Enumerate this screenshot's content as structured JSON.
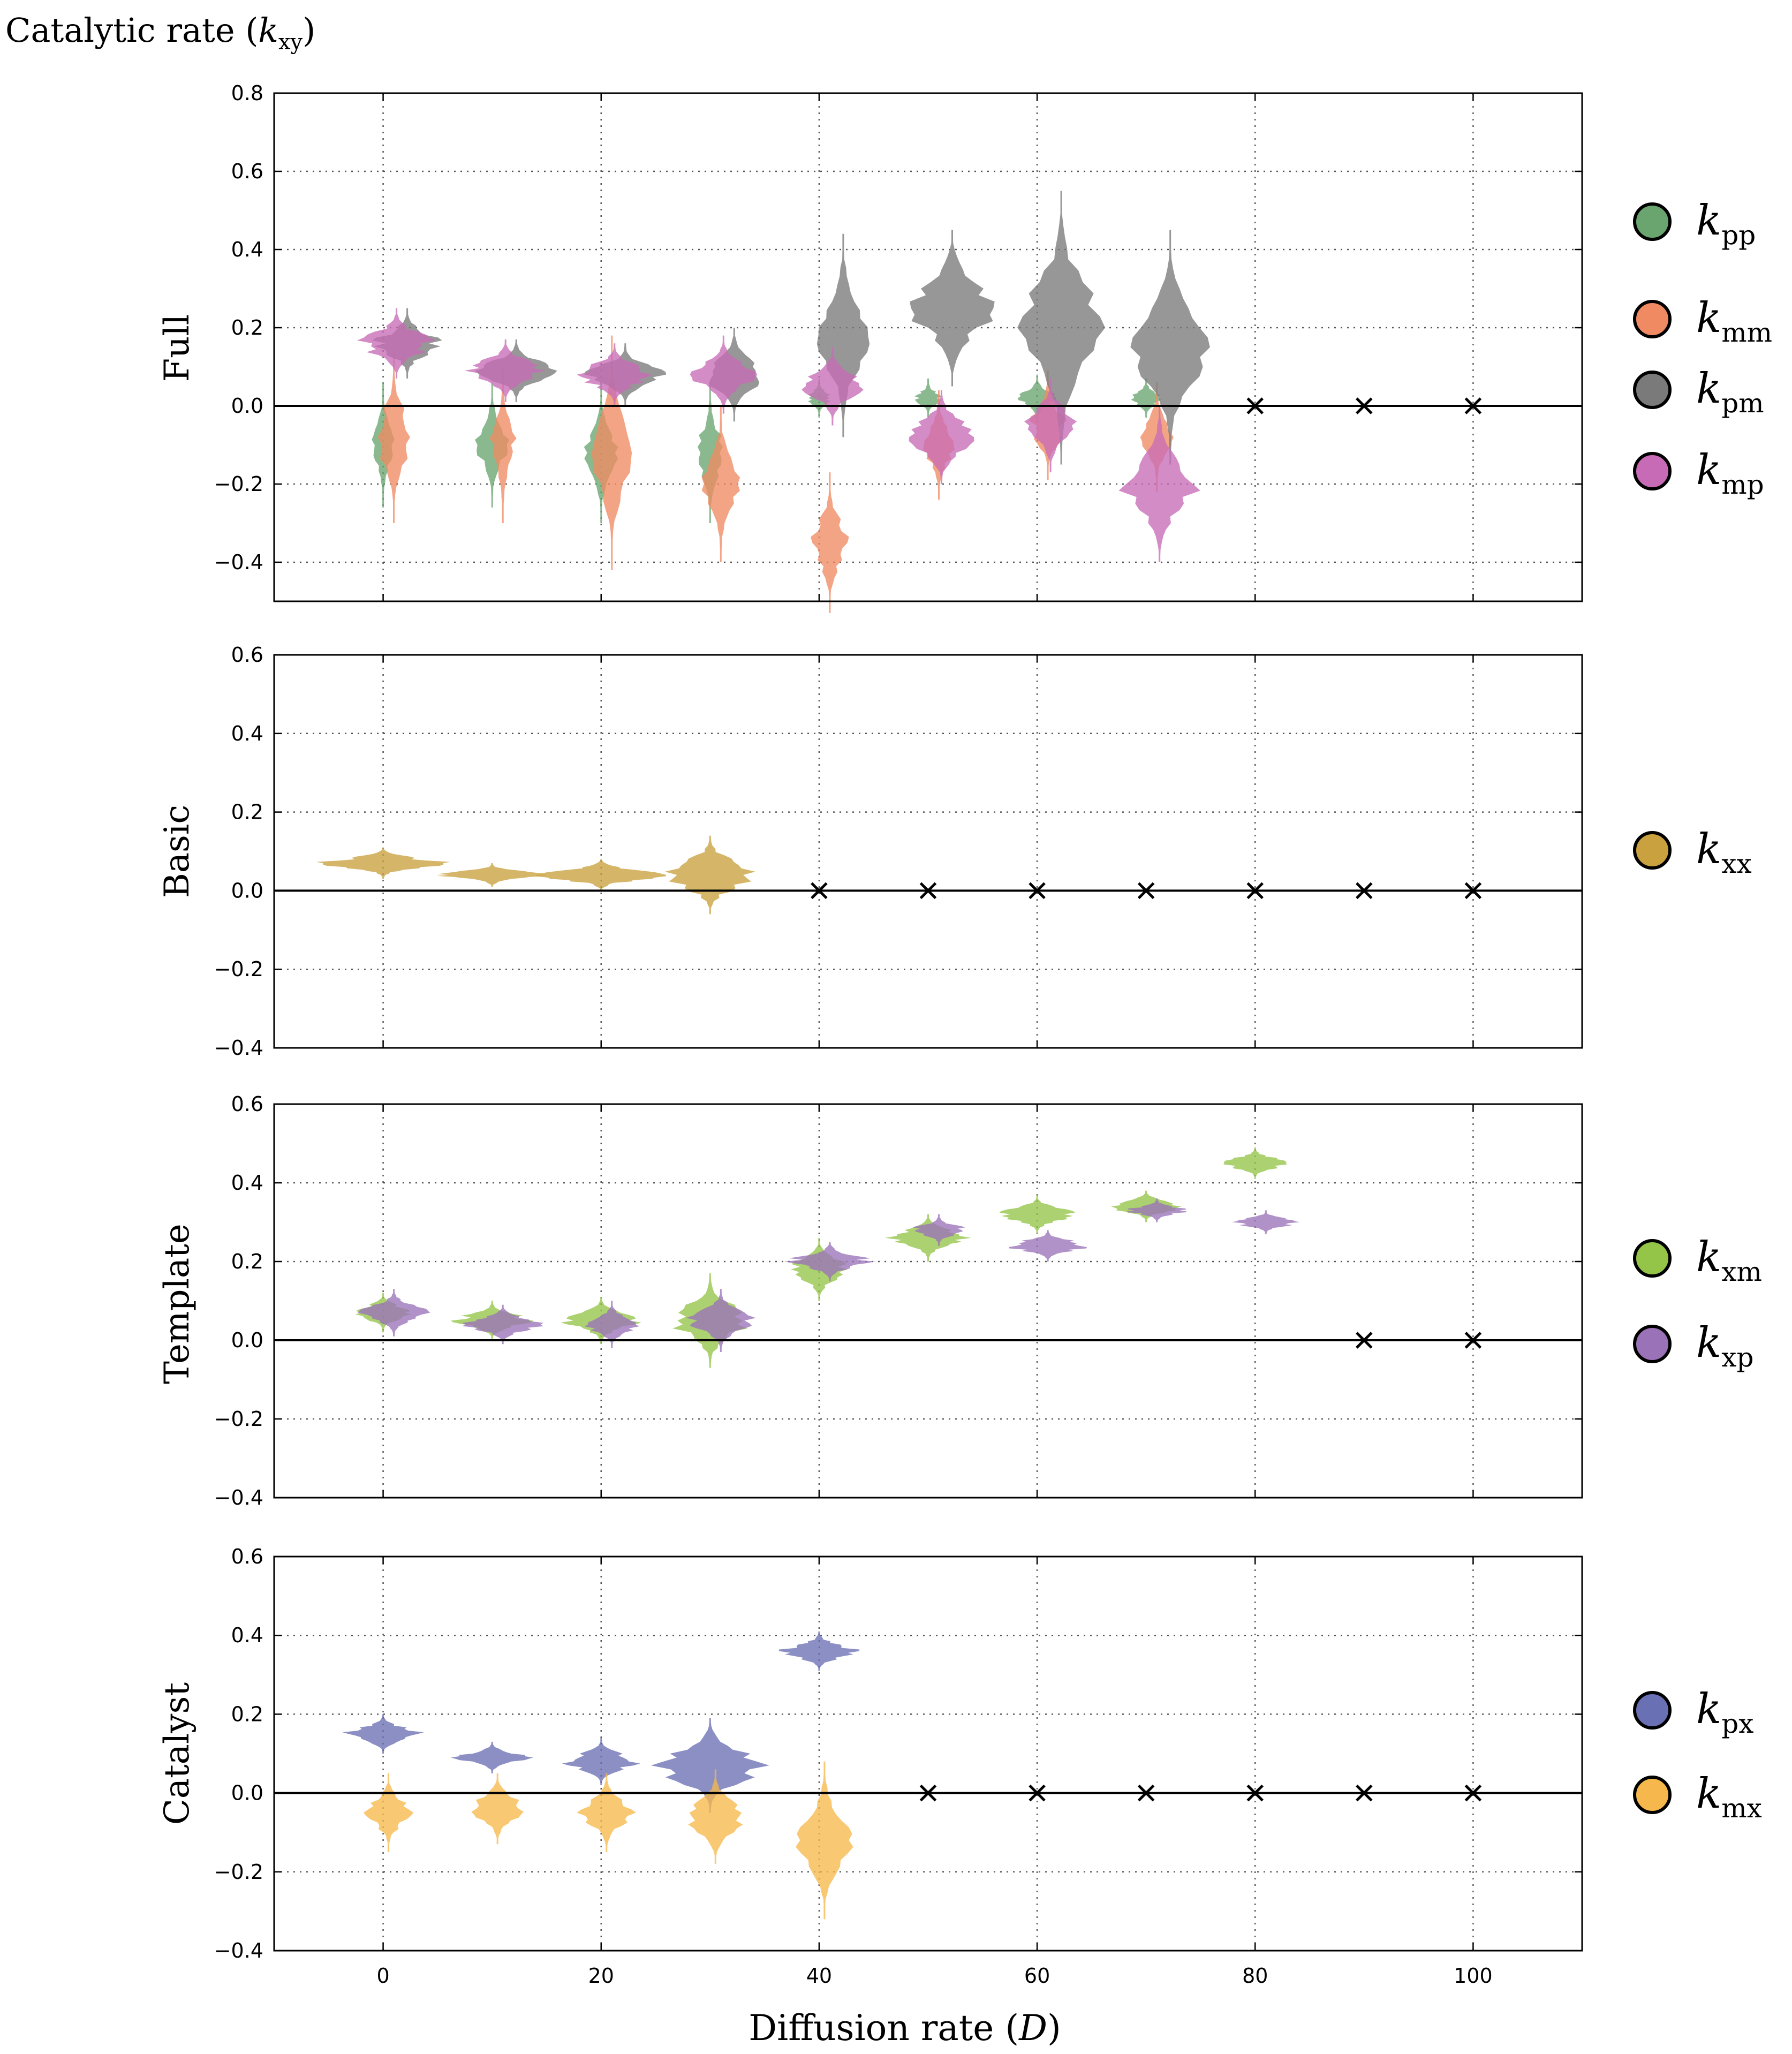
{
  "figure": {
    "ylabel_prefix": "Catalytic rate (",
    "ylabel_k": "k",
    "ylabel_sub": "xy",
    "ylabel_suffix": ")",
    "xlabel_prefix": "Diffusion rate (",
    "xlabel_D": "D",
    "xlabel_suffix": ")"
  },
  "colors": {
    "kpp": "#6aa56f",
    "kmm": "#f08a63",
    "kpm": "#7a7a7a",
    "kmp": "#c86bb6",
    "kxx": "#c9a13f",
    "kxm": "#94c448",
    "kxp": "#9a72b8",
    "kpx": "#6a70b4",
    "kmx": "#f6b84c"
  },
  "chart_data": [
    {
      "type": "violin",
      "panel": "Full",
      "xlim": [
        -10,
        110
      ],
      "ylim": [
        -0.5,
        0.8
      ],
      "xticks": [
        0,
        20,
        40,
        60,
        80,
        100
      ],
      "yticks": [
        -0.4,
        -0.2,
        0.0,
        0.2,
        0.4,
        0.6,
        0.8
      ],
      "ytick_labels": [
        "−0.4",
        "−0.2",
        "0.0",
        "0.2",
        "0.4",
        "0.6",
        "0.8"
      ],
      "x": [
        0,
        10,
        20,
        30,
        40,
        50,
        60,
        70
      ],
      "extinct_x": [
        80,
        90,
        100
      ],
      "series": [
        {
          "key": "kpp",
          "name": "pp",
          "medians": [
            -0.1,
            -0.1,
            -0.12,
            -0.12,
            0.02,
            0.02,
            0.02,
            0.02
          ]
        },
        {
          "key": "kmm",
          "name": "mm",
          "medians": [
            -0.08,
            -0.1,
            -0.12,
            -0.2,
            -0.35,
            -0.1,
            -0.05,
            -0.08
          ]
        },
        {
          "key": "kpm",
          "name": "pm",
          "medians": [
            0.16,
            0.09,
            0.08,
            0.08,
            0.18,
            0.25,
            0.2,
            0.15
          ]
        },
        {
          "key": "kmp",
          "name": "mp",
          "medians": [
            0.16,
            0.09,
            0.08,
            0.08,
            0.05,
            -0.08,
            -0.05,
            -0.2
          ]
        }
      ]
    },
    {
      "type": "violin",
      "panel": "Basic",
      "xlim": [
        -10,
        110
      ],
      "ylim": [
        -0.4,
        0.6
      ],
      "xticks": [
        0,
        20,
        40,
        60,
        80,
        100
      ],
      "yticks": [
        -0.4,
        -0.2,
        0.0,
        0.2,
        0.4,
        0.6
      ],
      "ytick_labels": [
        "−0.4",
        "−0.2",
        "0.0",
        "0.2",
        "0.4",
        "0.6"
      ],
      "x": [
        0,
        10,
        20,
        30
      ],
      "extinct_x": [
        40,
        50,
        60,
        70,
        80,
        90,
        100
      ],
      "series": [
        {
          "key": "kxx",
          "name": "xx",
          "medians": [
            0.07,
            0.04,
            0.04,
            0.04
          ]
        }
      ]
    },
    {
      "type": "violin",
      "panel": "Template",
      "xlim": [
        -10,
        110
      ],
      "ylim": [
        -0.4,
        0.6
      ],
      "xticks": [
        0,
        20,
        40,
        60,
        80,
        100
      ],
      "yticks": [
        -0.4,
        -0.2,
        0.0,
        0.2,
        0.4,
        0.6
      ],
      "ytick_labels": [
        "−0.4",
        "−0.2",
        "0.0",
        "0.2",
        "0.4",
        "0.6"
      ],
      "x": [
        0,
        10,
        20,
        30,
        40,
        50,
        60,
        70,
        80
      ],
      "extinct_x": [
        90,
        100
      ],
      "series": [
        {
          "key": "kxm",
          "name": "xm",
          "medians": [
            0.07,
            0.05,
            0.05,
            0.05,
            0.18,
            0.26,
            0.32,
            0.34,
            0.45
          ]
        },
        {
          "key": "kxp",
          "name": "xp",
          "medians": [
            0.07,
            0.04,
            0.04,
            0.05,
            0.2,
            0.28,
            0.24,
            0.33,
            0.3
          ]
        }
      ]
    },
    {
      "type": "violin",
      "panel": "Catalyst",
      "xlim": [
        -10,
        110
      ],
      "ylim": [
        -0.4,
        0.6
      ],
      "xticks": [
        0,
        20,
        40,
        60,
        80,
        100
      ],
      "xtick_labels": [
        "0",
        "20",
        "40",
        "60",
        "80",
        "100"
      ],
      "yticks": [
        -0.4,
        -0.2,
        0.0,
        0.2,
        0.4,
        0.6
      ],
      "ytick_labels": [
        "−0.4",
        "−0.2",
        "0.0",
        "0.2",
        "0.4",
        "0.6"
      ],
      "x": [
        0,
        10,
        20,
        30,
        40
      ],
      "extinct_x": [
        50,
        60,
        70,
        80,
        90,
        100
      ],
      "series": [
        {
          "key": "kpx",
          "name": "px",
          "medians": [
            0.15,
            0.09,
            0.08,
            0.07,
            0.36
          ]
        },
        {
          "key": "kmx",
          "name": "mx",
          "medians": [
            -0.05,
            -0.04,
            -0.05,
            -0.06,
            -0.12
          ]
        }
      ]
    }
  ]
}
